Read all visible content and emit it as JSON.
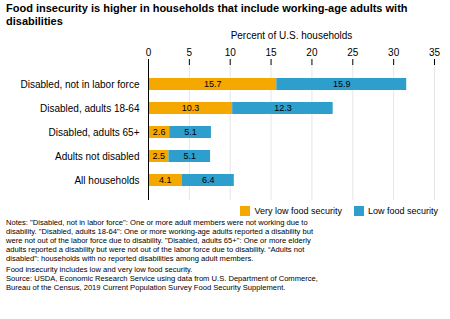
{
  "chart_data": {
    "type": "bar",
    "orientation": "horizontal",
    "stacked": true,
    "title": "Food insecurity is higher in households that include working-age adults with disabilities",
    "xlabel": "Percent of U.S. households",
    "categories": [
      "All households",
      "Adults not disabled",
      "Disabled, adults 65+",
      "Disabled, adults 18-64",
      "Disabled, not in labor force"
    ],
    "series": [
      {
        "name": "Very low food security",
        "color": "#F5A800",
        "values": [
          4.1,
          2.5,
          2.6,
          10.3,
          15.7
        ]
      },
      {
        "name": "Low food security",
        "color": "#2E9ECC",
        "values": [
          6.4,
          5.1,
          5.1,
          12.3,
          15.9
        ]
      }
    ],
    "xlim": [
      0,
      35
    ],
    "xticks": [
      0,
      5,
      10,
      15,
      20,
      25,
      30,
      35
    ],
    "grid": true,
    "data_labels": true,
    "legend": "right",
    "annotations": [
      "Notes: \"Disabled, not in labor force\": One or more adult members were not working due to",
      "disability. \"Disabled, adults 18-64\": One or more working-age adults reported a disability but",
      "were not out of the labor force due to disability. \"Disabled, adults 65+\": One or more elderly",
      "adults reported a disability but were not out of the labor force due to disability. “Adults not",
      "disabled”: households with no reported disabilities among adult members.",
      "Food insecurity includes low and very low food security.",
      "Source: USDA, Economic Research Service using data from U.S. Department of Commerce,",
      "Bureau of the Census, 2019 Current Population Survey Food Security Supplement."
    ]
  }
}
